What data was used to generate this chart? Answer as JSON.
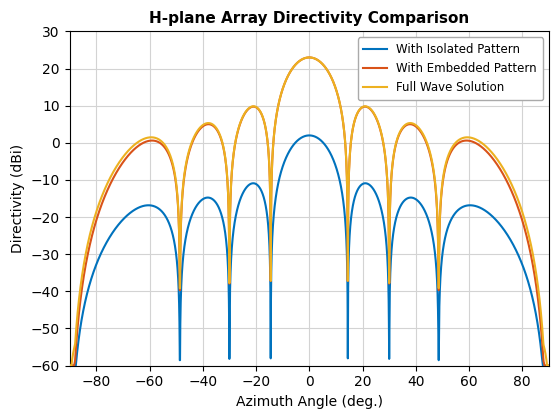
{
  "title": "H-plane Array Directivity Comparison",
  "xlabel": "Azimuth Angle (deg.)",
  "ylabel": "Directivity (dBi)",
  "xlim": [
    -90,
    90
  ],
  "ylim": [
    -60,
    30
  ],
  "xticks": [
    -80,
    -60,
    -40,
    -20,
    0,
    20,
    40,
    60,
    80
  ],
  "yticks": [
    -60,
    -50,
    -40,
    -30,
    -20,
    -10,
    0,
    10,
    20,
    30
  ],
  "line1_color": "#0072BD",
  "line2_color": "#D95319",
  "line3_color": "#EDB120",
  "line1_label": "With Isolated Pattern",
  "line2_label": "With Embedded Pattern",
  "line3_label": "Full Wave Solution",
  "background_color": "#ffffff",
  "grid_color": "#d3d3d3",
  "figsize": [
    5.6,
    4.2
  ],
  "dpi": 100,
  "n_elements": 8,
  "d_lambda": 0.5
}
